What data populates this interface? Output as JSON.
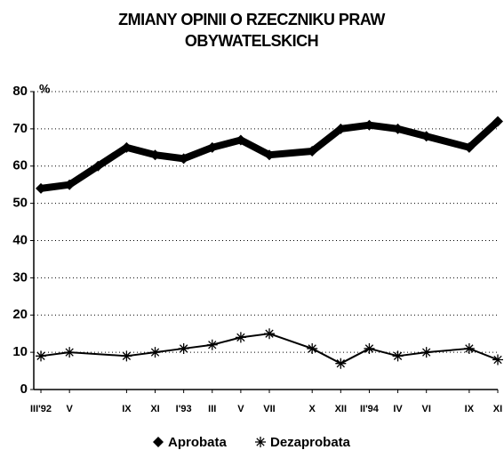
{
  "chart_data": {
    "type": "line",
    "title": "ZMIANY OPINII O RZECZNIKU PRAW OBYWATELSKICH",
    "y_unit": "%",
    "xlim": [
      -0.5,
      32
    ],
    "xticks": [
      {
        "value": 0,
        "label": "III'92"
      },
      {
        "value": 2,
        "label": "V"
      },
      {
        "value": 6,
        "label": "IX"
      },
      {
        "value": 8,
        "label": "XI"
      },
      {
        "value": 10,
        "label": "I'93"
      },
      {
        "value": 12,
        "label": "III"
      },
      {
        "value": 14,
        "label": "V"
      },
      {
        "value": 16,
        "label": "VII"
      },
      {
        "value": 19,
        "label": "X"
      },
      {
        "value": 21,
        "label": "XII"
      },
      {
        "value": 23,
        "label": "II'94"
      },
      {
        "value": 25,
        "label": "IV"
      },
      {
        "value": 27,
        "label": "VI"
      },
      {
        "value": 30,
        "label": "IX"
      },
      {
        "value": 32,
        "label": "XI"
      }
    ],
    "ylim": [
      0,
      80
    ],
    "yticks": [
      0,
      10,
      20,
      30,
      40,
      50,
      60,
      70,
      80
    ],
    "grid": true,
    "legend": "bottom",
    "series": [
      {
        "name": "Aprobata",
        "color": "#000000",
        "marker": "diamond",
        "x": [
          0,
          2,
          4,
          6,
          8,
          10,
          12,
          14,
          16,
          19,
          21,
          23,
          25,
          27,
          30,
          32
        ],
        "values": [
          54,
          55,
          60,
          65,
          63,
          62,
          65,
          67,
          63,
          64,
          70,
          71,
          70,
          68,
          65,
          72
        ]
      },
      {
        "name": "Dezaprobata",
        "color": "#000000",
        "marker": "asterisk",
        "x": [
          0,
          2,
          6,
          8,
          10,
          12,
          14,
          16,
          19,
          21,
          23,
          25,
          27,
          30,
          32
        ],
        "values": [
          9,
          10,
          9,
          10,
          11,
          12,
          14,
          15,
          11,
          7,
          11,
          9,
          10,
          11,
          8
        ]
      }
    ]
  }
}
